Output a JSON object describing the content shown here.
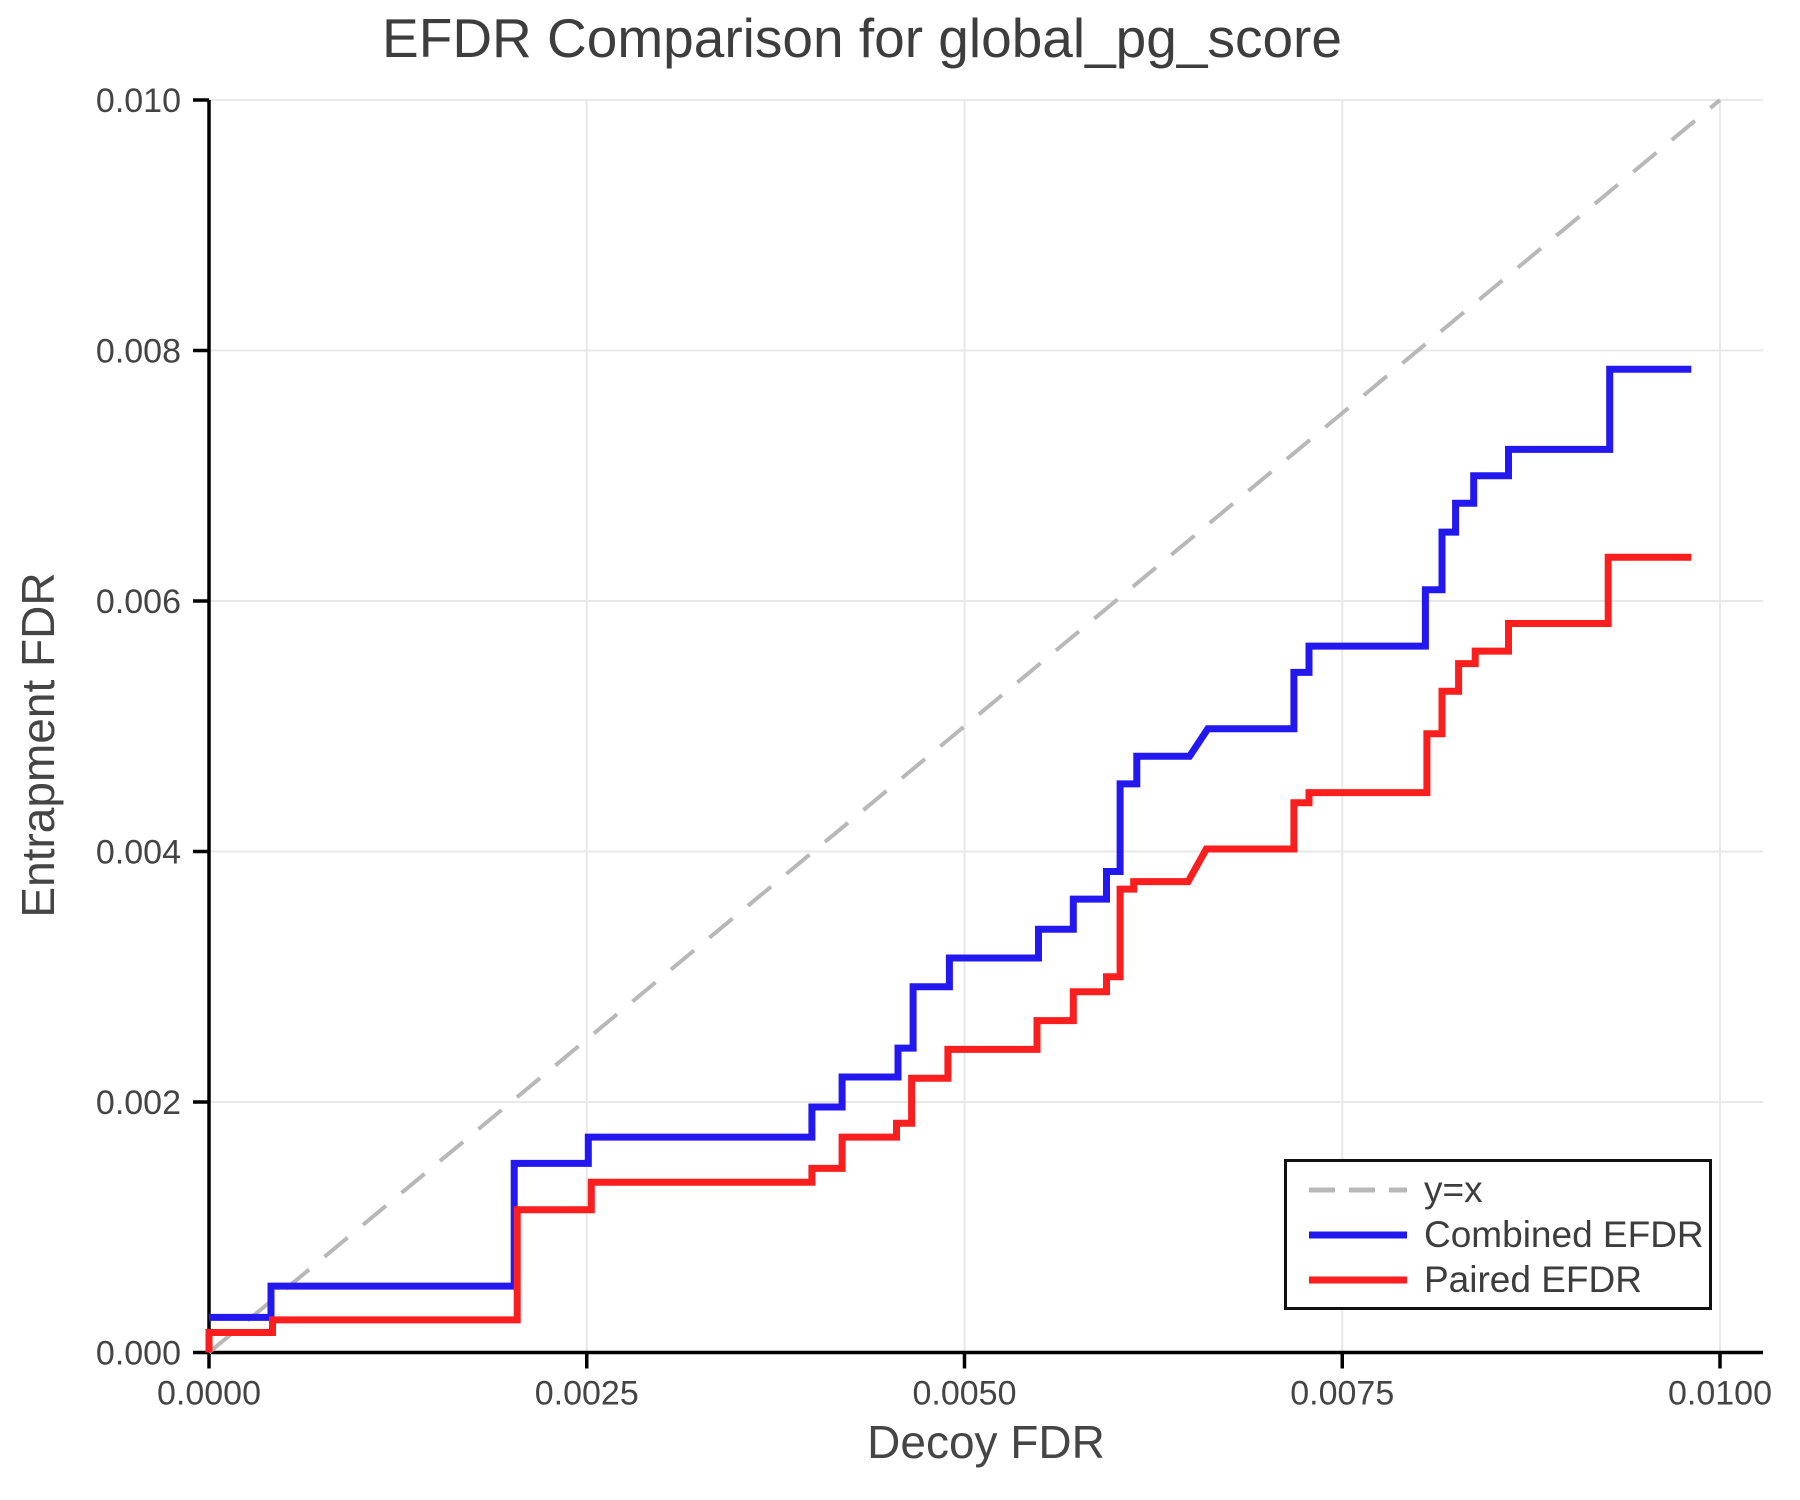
{
  "chart_data": {
    "type": "line",
    "subtype": "step",
    "title": "EFDR Comparison for global_pg_score",
    "xlabel": "Decoy FDR",
    "ylabel": "Entrapment FDR",
    "xlim": [
      0.0,
      0.01
    ],
    "ylim": [
      0.0,
      0.01
    ],
    "grid": true,
    "legend_position": "lower right",
    "x_ticks": [
      0.0,
      0.0025,
      0.005,
      0.0075,
      0.01
    ],
    "x_tick_labels": [
      "0.0000",
      "0.0025",
      "0.0050",
      "0.0075",
      "0.0100"
    ],
    "y_ticks": [
      0.0,
      0.002,
      0.004,
      0.006,
      0.008,
      0.01
    ],
    "y_tick_labels": [
      "0.000",
      "0.002",
      "0.004",
      "0.006",
      "0.008",
      "0.010"
    ],
    "colors": {
      "grid": "#e8e8e8",
      "spine": "#000000",
      "tick_label": "#444444",
      "reference": "#b8b8b8",
      "combined": "#2318f0",
      "paired": "#fa1e1e"
    },
    "reference_line": {
      "label": "y=x",
      "from": [
        0.0,
        0.0
      ],
      "to": [
        0.01,
        0.01
      ],
      "dashed": true,
      "color": "#b8b8b8"
    },
    "legend_entries": [
      {
        "label": "y=x",
        "color": "#b8b8b8",
        "dashed": true
      },
      {
        "label": "Combined EFDR",
        "color": "#2318f0",
        "dashed": false
      },
      {
        "label": "Paired EFDR",
        "color": "#fa1e1e",
        "dashed": false
      }
    ],
    "series": [
      {
        "name": "Combined EFDR",
        "color": "#2318f0",
        "points": [
          [
            0.0,
            0.00028
          ],
          [
            0.00041,
            0.00028
          ],
          [
            0.00041,
            0.00053
          ],
          [
            0.00202,
            0.00053
          ],
          [
            0.00202,
            0.00151
          ],
          [
            0.00251,
            0.00151
          ],
          [
            0.00251,
            0.00172
          ],
          [
            0.00399,
            0.00172
          ],
          [
            0.00399,
            0.00196
          ],
          [
            0.00419,
            0.00196
          ],
          [
            0.00419,
            0.0022
          ],
          [
            0.00456,
            0.0022
          ],
          [
            0.00456,
            0.00243
          ],
          [
            0.00466,
            0.00243
          ],
          [
            0.00466,
            0.00292
          ],
          [
            0.0049,
            0.00292
          ],
          [
            0.0049,
            0.00315
          ],
          [
            0.00549,
            0.00315
          ],
          [
            0.00549,
            0.00338
          ],
          [
            0.00572,
            0.00338
          ],
          [
            0.00572,
            0.00362
          ],
          [
            0.00594,
            0.00362
          ],
          [
            0.00594,
            0.00384
          ],
          [
            0.00603,
            0.00384
          ],
          [
            0.00603,
            0.00454
          ],
          [
            0.00614,
            0.00454
          ],
          [
            0.00614,
            0.00476
          ],
          [
            0.00649,
            0.00476
          ],
          [
            0.00661,
            0.00498
          ],
          [
            0.00718,
            0.00498
          ],
          [
            0.00718,
            0.00543
          ],
          [
            0.00728,
            0.00543
          ],
          [
            0.00728,
            0.00564
          ],
          [
            0.00805,
            0.00564
          ],
          [
            0.00805,
            0.00609
          ],
          [
            0.00816,
            0.00609
          ],
          [
            0.00816,
            0.00655
          ],
          [
            0.00825,
            0.00655
          ],
          [
            0.00825,
            0.00678
          ],
          [
            0.00837,
            0.00678
          ],
          [
            0.00837,
            0.007
          ],
          [
            0.0086,
            0.007
          ],
          [
            0.0086,
            0.00721
          ],
          [
            0.00927,
            0.00721
          ],
          [
            0.00927,
            0.00785
          ],
          [
            0.00981,
            0.00785
          ]
        ]
      },
      {
        "name": "Paired EFDR",
        "color": "#fa1e1e",
        "points": [
          [
            0.0,
            0.0
          ],
          [
            0.0,
            0.00016
          ],
          [
            0.00042,
            0.00016
          ],
          [
            0.00042,
            0.00026
          ],
          [
            0.00204,
            0.00026
          ],
          [
            0.00204,
            0.00114
          ],
          [
            0.00253,
            0.00114
          ],
          [
            0.00253,
            0.00136
          ],
          [
            0.00399,
            0.00136
          ],
          [
            0.00399,
            0.00147
          ],
          [
            0.00419,
            0.00147
          ],
          [
            0.00419,
            0.00172
          ],
          [
            0.00455,
            0.00172
          ],
          [
            0.00455,
            0.00183
          ],
          [
            0.00465,
            0.00183
          ],
          [
            0.00465,
            0.00219
          ],
          [
            0.00489,
            0.00219
          ],
          [
            0.00489,
            0.00242
          ],
          [
            0.00548,
            0.00242
          ],
          [
            0.00548,
            0.00265
          ],
          [
            0.00572,
            0.00265
          ],
          [
            0.00572,
            0.00288
          ],
          [
            0.00594,
            0.00288
          ],
          [
            0.00594,
            0.003
          ],
          [
            0.00603,
            0.003
          ],
          [
            0.00603,
            0.0037
          ],
          [
            0.00612,
            0.0037
          ],
          [
            0.00612,
            0.00376
          ],
          [
            0.00648,
            0.00376
          ],
          [
            0.0066,
            0.00402
          ],
          [
            0.00718,
            0.00402
          ],
          [
            0.00718,
            0.00439
          ],
          [
            0.00728,
            0.00439
          ],
          [
            0.00728,
            0.00447
          ],
          [
            0.00806,
            0.00447
          ],
          [
            0.00806,
            0.00494
          ],
          [
            0.00816,
            0.00494
          ],
          [
            0.00816,
            0.00528
          ],
          [
            0.00827,
            0.00528
          ],
          [
            0.00827,
            0.0055
          ],
          [
            0.00838,
            0.0055
          ],
          [
            0.00838,
            0.0056
          ],
          [
            0.0086,
            0.0056
          ],
          [
            0.0086,
            0.00582
          ],
          [
            0.00926,
            0.00582
          ],
          [
            0.00926,
            0.00635
          ],
          [
            0.00981,
            0.00635
          ]
        ]
      }
    ]
  }
}
